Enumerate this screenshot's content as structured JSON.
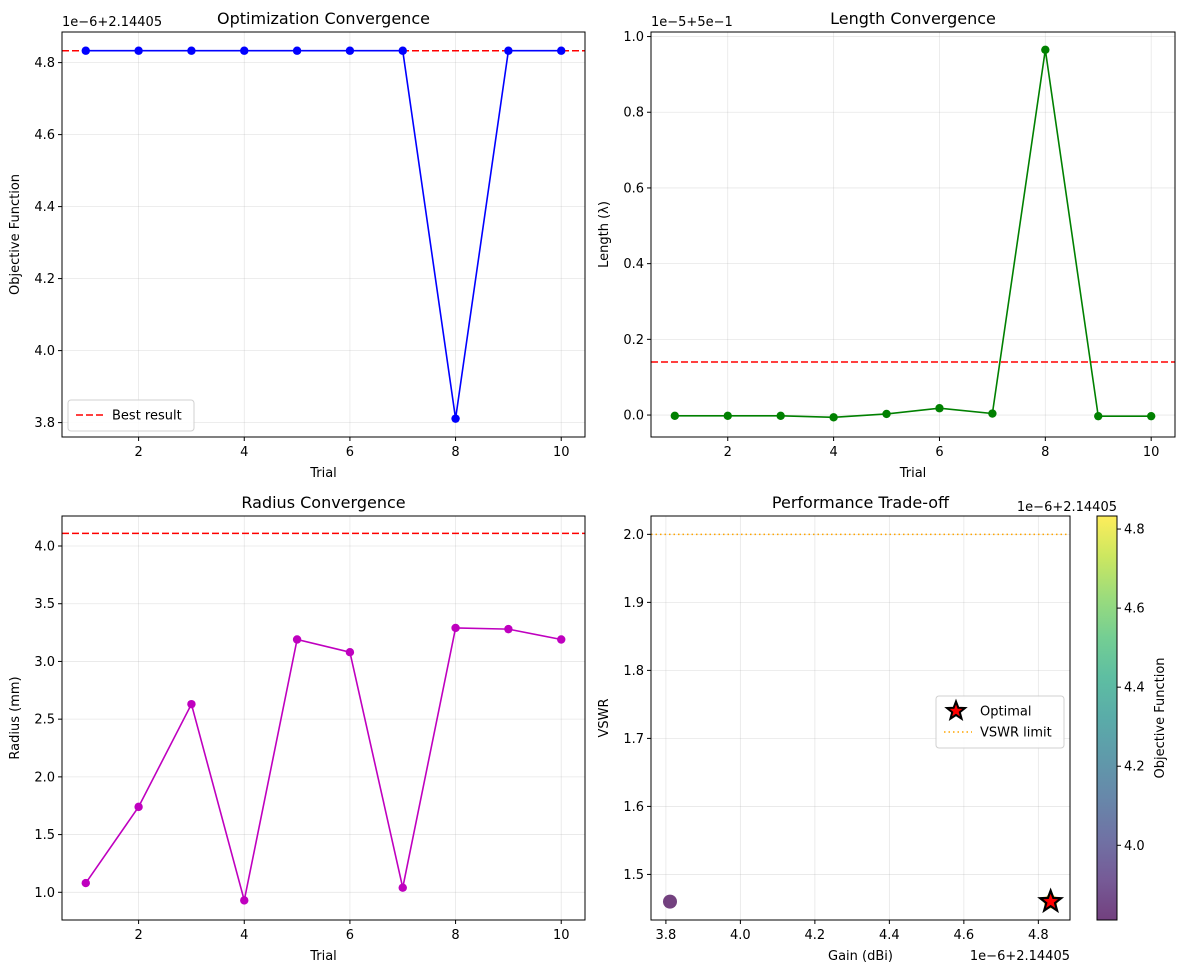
{
  "chart_data": [
    {
      "id": "objective",
      "type": "line",
      "title": "Optimization Convergence",
      "xlabel": "Trial",
      "ylabel": "Objective Function",
      "y_offset_text": "1e−6+2.14405",
      "xlim": [
        0.55,
        10.45
      ],
      "ylim": [
        3.76,
        4.885
      ],
      "xticks": [
        2,
        4,
        6,
        8,
        10
      ],
      "yticks": [
        3.8,
        4.0,
        4.2,
        4.4,
        4.6,
        4.8
      ],
      "ytick_labels": [
        "3.8",
        "4.0",
        "4.2",
        "4.4",
        "4.6",
        "4.8"
      ],
      "grid": true,
      "series": [
        {
          "x": [
            1,
            2,
            3,
            4,
            5,
            6,
            7,
            8,
            9,
            10
          ],
          "y": [
            4.833,
            4.833,
            4.833,
            4.833,
            4.833,
            4.833,
            4.833,
            3.811,
            4.833,
            4.833
          ],
          "color": "#0000ff",
          "marker": "o"
        }
      ],
      "hlines": [
        {
          "y": 4.833,
          "color": "#ff0000",
          "style": "dashed",
          "label": "Best result"
        }
      ],
      "legend": {
        "position": "lower-left",
        "items": [
          {
            "label": "Best result",
            "color": "#ff0000",
            "style": "dashed"
          }
        ]
      }
    },
    {
      "id": "length",
      "type": "line",
      "title": "Length Convergence",
      "xlabel": "Trial",
      "ylabel": "Length (λ)",
      "y_offset_text": "1e−5+5e−1",
      "xlim": [
        0.55,
        10.45
      ],
      "ylim": [
        -0.058,
        1.012
      ],
      "xticks": [
        2,
        4,
        6,
        8,
        10
      ],
      "yticks": [
        0.0,
        0.2,
        0.4,
        0.6,
        0.8,
        1.0
      ],
      "ytick_labels": [
        "0.0",
        "0.2",
        "0.4",
        "0.6",
        "0.8",
        "1.0"
      ],
      "grid": true,
      "series": [
        {
          "x": [
            1,
            2,
            3,
            4,
            5,
            6,
            7,
            8,
            9,
            10
          ],
          "y": [
            -0.002,
            -0.002,
            -0.002,
            -0.006,
            0.003,
            0.018,
            0.004,
            0.965,
            -0.003,
            -0.003
          ],
          "color": "#008000",
          "marker": "o"
        }
      ],
      "hlines": [
        {
          "y": 0.14,
          "color": "#ff0000",
          "style": "dashed"
        }
      ]
    },
    {
      "id": "radius",
      "type": "line",
      "title": "Radius Convergence",
      "xlabel": "Trial",
      "ylabel": "Radius (mm)",
      "xlim": [
        0.55,
        10.45
      ],
      "ylim": [
        0.76,
        4.26
      ],
      "xticks": [
        2,
        4,
        6,
        8,
        10
      ],
      "yticks": [
        1.0,
        1.5,
        2.0,
        2.5,
        3.0,
        3.5,
        4.0
      ],
      "ytick_labels": [
        "1.0",
        "1.5",
        "2.0",
        "2.5",
        "3.0",
        "3.5",
        "4.0"
      ],
      "grid": true,
      "series": [
        {
          "x": [
            1,
            2,
            3,
            4,
            5,
            6,
            7,
            8,
            9,
            10
          ],
          "y": [
            1.08,
            1.74,
            2.63,
            0.93,
            3.19,
            3.08,
            1.04,
            3.29,
            3.28,
            3.19
          ],
          "color": "#bf00bf",
          "marker": "o"
        }
      ],
      "hlines": [
        {
          "y": 4.11,
          "color": "#ff0000",
          "style": "dashed"
        }
      ]
    },
    {
      "id": "tradeoff",
      "type": "scatter",
      "title": "Performance Trade-off",
      "xlabel": "Gain (dBi)",
      "ylabel": "VSWR",
      "x_offset_text": "1e−6+2.14405",
      "xlim": [
        3.76,
        4.885
      ],
      "ylim": [
        1.433,
        2.027
      ],
      "xticks": [
        3.8,
        4.0,
        4.2,
        4.4,
        4.6,
        4.8
      ],
      "xtick_labels": [
        "3.8",
        "4.0",
        "4.2",
        "4.4",
        "4.6",
        "4.8"
      ],
      "yticks": [
        1.5,
        1.6,
        1.7,
        1.8,
        1.9,
        2.0
      ],
      "ytick_labels": [
        "1.5",
        "1.6",
        "1.7",
        "1.8",
        "1.9",
        "2.0"
      ],
      "grid": true,
      "points": [
        {
          "x": 3.811,
          "y": 1.46,
          "c": 3.811
        },
        {
          "x": 4.833,
          "y": 1.46,
          "c": 4.833
        }
      ],
      "optimal": {
        "x": 4.833,
        "y": 1.46,
        "label": "Optimal",
        "color": "#ff0000"
      },
      "hlines": [
        {
          "y": 2.0,
          "color": "#ffa500",
          "style": "dotted",
          "label": "VSWR limit"
        }
      ],
      "legend": {
        "position": "center-right",
        "items": [
          {
            "label": "Optimal",
            "marker": "star",
            "color": "#ff0000"
          },
          {
            "label": "VSWR limit",
            "color": "#ffa500",
            "style": "dotted"
          }
        ]
      },
      "colorbar": {
        "label": "Objective Function",
        "offset_text": "1e−6+2.14405",
        "range": [
          3.811,
          4.833
        ],
        "ticks": [
          4.0,
          4.2,
          4.4,
          4.6,
          4.8
        ],
        "tick_labels": [
          "4.0",
          "4.2",
          "4.4",
          "4.6",
          "4.8"
        ],
        "colormap": "viridis"
      }
    }
  ]
}
